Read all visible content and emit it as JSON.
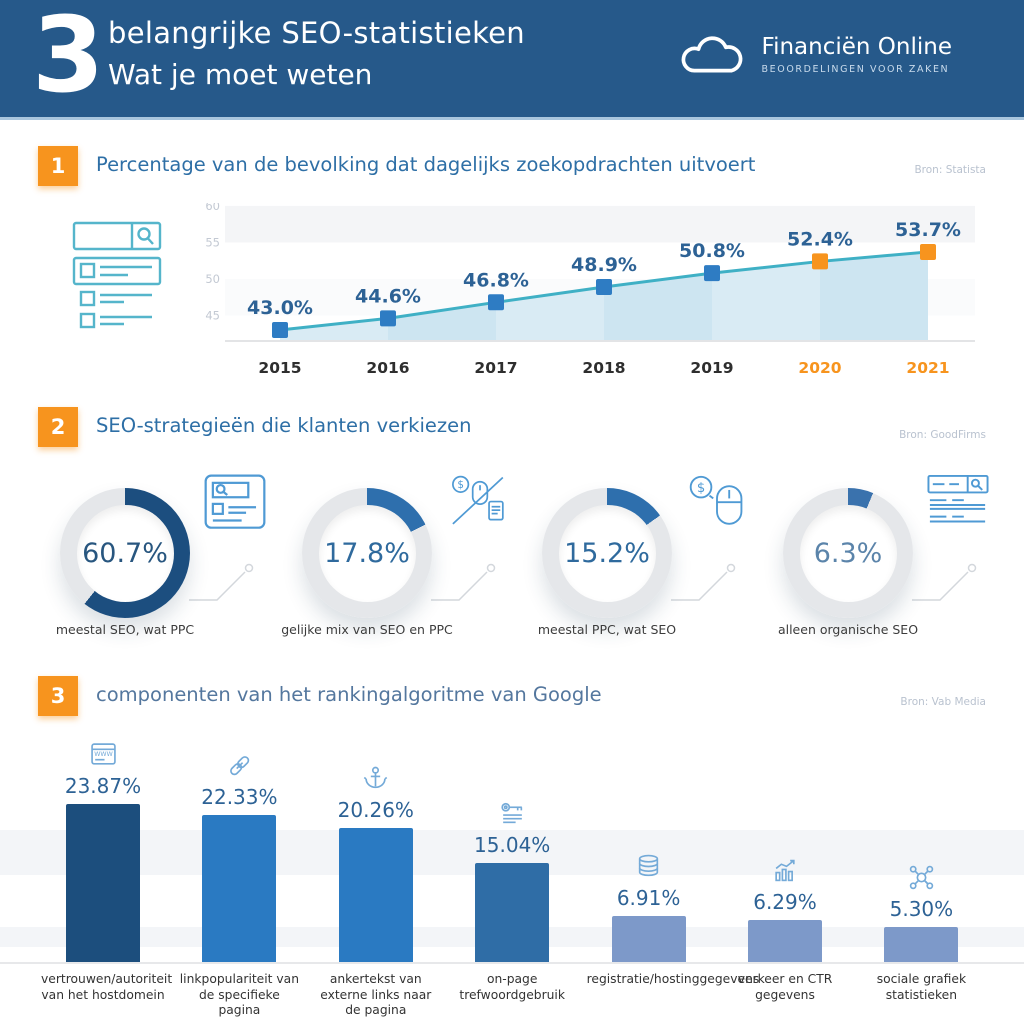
{
  "header": {
    "big_number": "3",
    "title_line1": "belangrijke SEO-statistieken",
    "title_line2": "Wat je moet weten",
    "logo": {
      "name": "Financiën Online",
      "tagline": "BEOORDELINGEN VOOR ZAKEN",
      "icon": "cloud-icon"
    }
  },
  "sections": [
    {
      "badge": "1",
      "title": "Percentage van de bevolking dat dagelijks zoekopdrachten uitvoert",
      "source": "Bron: Statista"
    },
    {
      "badge": "2",
      "title": "SEO-strategieën die klanten verkiezen",
      "source": "Bron: GoodFirms"
    },
    {
      "badge": "3",
      "title": "componenten van het rankingalgoritme van Google",
      "source": "Bron: Vab Media"
    }
  ],
  "colors": {
    "header_bg": "#26598a",
    "accent_orange": "#f7941e",
    "title_blue": "#2e6fa6",
    "value_blue": "#2d6295",
    "line_teal": "#3fb0c5",
    "marker_blue": "#2e7cc3",
    "area_light": "#d9ebf4",
    "area_dark": "#cde5f1",
    "ring_gray": "#e5e7ea"
  },
  "chart_data": [
    {
      "type": "line",
      "title": "Percentage van de bevolking dat dagelijks zoekopdrachten uitvoert",
      "source": "Bron: Statista",
      "x": [
        "2015",
        "2016",
        "2017",
        "2018",
        "2019",
        "2020",
        "2021"
      ],
      "values": [
        43.0,
        44.6,
        46.8,
        48.9,
        50.8,
        52.4,
        53.7
      ],
      "point_labels": [
        "43.0%",
        "44.6%",
        "46.8%",
        "48.9%",
        "50.8%",
        "52.4%",
        "53.7%"
      ],
      "highlight_from_index": 5,
      "yticks": [
        45,
        50,
        55,
        60
      ],
      "ylim": [
        41.5,
        60
      ],
      "grid": "subtle-horizontal-stripes",
      "legend": "none",
      "line_color": "#3fb0c5",
      "marker_color": "#2e7cc3",
      "highlight_color": "#f7941e"
    },
    {
      "type": "pie",
      "subtype": "donut-multiples",
      "title": "SEO-strategieën die klanten verkiezen",
      "source": "Bron: GoodFirms",
      "segments": [
        {
          "value": 60.7,
          "label": "60.7%",
          "caption": "meestal SEO, wat PPC",
          "icon": "serp-list-icon",
          "arc_color": "#1c4e7f",
          "label_color": "#28567f"
        },
        {
          "value": 17.8,
          "label": "17.8%",
          "caption": "gelijke mix van SEO en PPC",
          "icon": "mouse-dollar-slash-icon",
          "arc_color": "#2e6fad",
          "label_color": "#2f6a9d"
        },
        {
          "value": 15.2,
          "label": "15.2%",
          "caption": "meestal PPC, wat SEO",
          "icon": "dollar-mouse-icon",
          "arc_color": "#2e6fad",
          "label_color": "#2f6a9d"
        },
        {
          "value": 6.3,
          "label": "6.3%",
          "caption": "alleen organische SEO",
          "icon": "search-page-icon",
          "arc_color": "#3a72ad",
          "label_color": "#5b84aa"
        }
      ]
    },
    {
      "type": "bar",
      "title": "componenten van het rankingalgoritme van Google",
      "source": "Bron: Vab Media",
      "categories": [
        "vertrouwen/autoriteit van het hostdomein",
        "linkpopulariteit van de specifieke pagina",
        "ankertekst van externe links naar de pagina",
        "on-page trefwoordgebruik",
        "registratie/hostinggegevens",
        "verkeer en CTR gegevens",
        "sociale grafiek statistieken"
      ],
      "values": [
        23.87,
        22.33,
        20.26,
        15.04,
        6.91,
        6.29,
        5.3
      ],
      "bar_labels": [
        "23.87%",
        "22.33%",
        "20.26%",
        "15.04%",
        "6.91%",
        "6.29%",
        "5.30%"
      ],
      "icons": [
        "website-icon",
        "link-icon",
        "anchor-icon",
        "key-icon",
        "database-icon",
        "traffic-chart-icon",
        "social-graph-icon"
      ],
      "bar_colors": [
        "#1c4e7d",
        "#2a7ac2",
        "#2a7ac2",
        "#2f6da6",
        "#7d99c9",
        "#7d99c9",
        "#7d99c9"
      ],
      "ylim": [
        0,
        25
      ],
      "grid": "subtle-horizontal-stripes",
      "legend": "none"
    }
  ]
}
